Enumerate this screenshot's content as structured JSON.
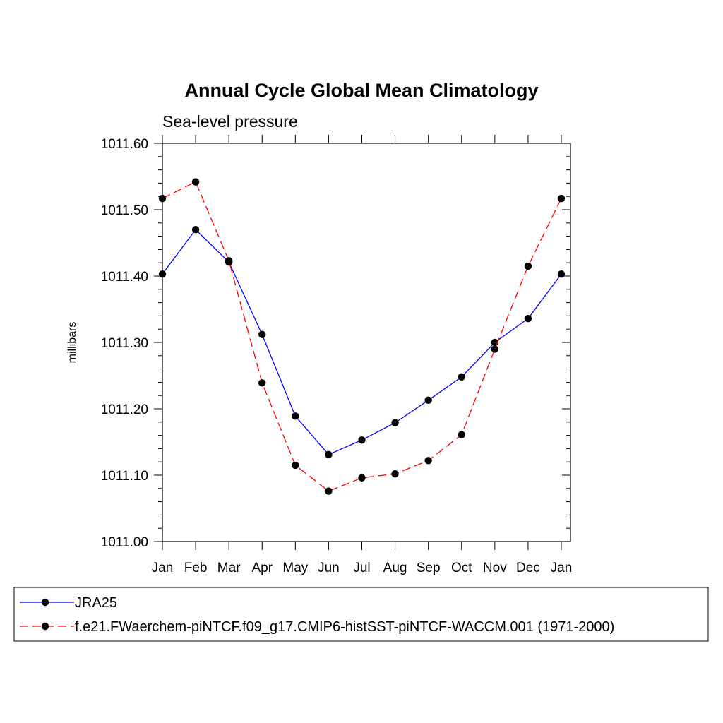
{
  "chart_data": {
    "type": "line",
    "title": "Annual Cycle Global Mean Climatology",
    "subtitle": "Sea-level pressure",
    "ylabel": "millibars",
    "xlabel": "",
    "categories": [
      "Jan",
      "Feb",
      "Mar",
      "Apr",
      "May",
      "Jun",
      "Jul",
      "Aug",
      "Sep",
      "Oct",
      "Nov",
      "Dec",
      "Jan"
    ],
    "ylim": [
      1011.0,
      1011.6
    ],
    "yticks": [
      "1011.00",
      "1011.10",
      "1011.20",
      "1011.30",
      "1011.40",
      "1011.50",
      "1011.60"
    ],
    "grid": false,
    "legend_position": "bottom",
    "series": [
      {
        "name": "JRA25",
        "color": "#0000ff",
        "style": "solid",
        "marker": "filled-circle",
        "values": [
          1011.403,
          1011.47,
          1011.421,
          1011.312,
          1011.189,
          1011.131,
          1011.153,
          1011.179,
          1011.213,
          1011.248,
          1011.3,
          1011.336,
          1011.403
        ]
      },
      {
        "name": "f.e21.FWaerchem-piNTCF.f09_g17.CMIP6-histSST-piNTCF-WACCM.001 (1971-2000)",
        "color": "#ff0000",
        "style": "dashed",
        "marker": "filled-circle",
        "values": [
          1011.517,
          1011.542,
          1011.423,
          1011.239,
          1011.115,
          1011.076,
          1011.096,
          1011.102,
          1011.122,
          1011.161,
          1011.29,
          1011.415,
          1011.517
        ]
      }
    ]
  }
}
